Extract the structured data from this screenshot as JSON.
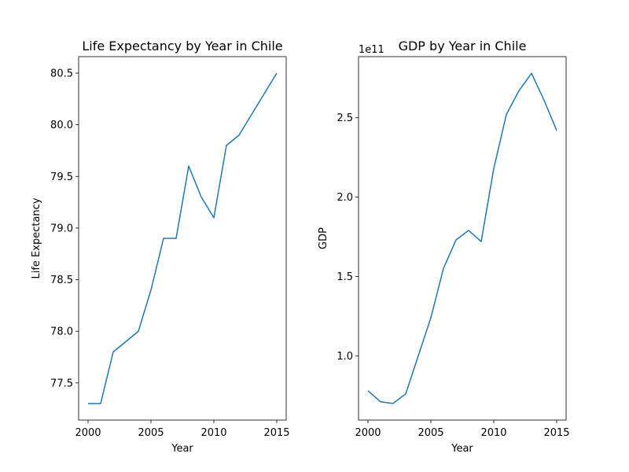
{
  "chart_data": [
    {
      "type": "line",
      "title": "Life Expectancy by Year in Chile",
      "xlabel": "Year",
      "ylabel": "Life Expectancy",
      "xlim": [
        1999.25,
        2015.75
      ],
      "ylim": [
        77.14,
        80.66
      ],
      "xticks": [
        2000,
        2005,
        2010,
        2015
      ],
      "yticks": [
        77.5,
        78.0,
        78.5,
        79.0,
        79.5,
        80.0,
        80.5
      ],
      "xtick_labels": [
        "2000",
        "2005",
        "2010",
        "2015"
      ],
      "ytick_labels": [
        "77.5",
        "78.0",
        "78.5",
        "79.0",
        "79.5",
        "80.0",
        "80.5"
      ],
      "offset_label": "",
      "grid": false,
      "color": "#1f77b4",
      "x": [
        2000,
        2001,
        2002,
        2003,
        2004,
        2005,
        2006,
        2007,
        2008,
        2009,
        2010,
        2011,
        2012,
        2013,
        2014,
        2015
      ],
      "y": [
        77.3,
        77.3,
        77.8,
        77.9,
        78.0,
        78.4,
        78.9,
        78.9,
        79.6,
        79.3,
        79.1,
        79.8,
        79.9,
        80.1,
        80.3,
        80.5
      ]
    },
    {
      "type": "line",
      "title": "GDP by Year in Chile",
      "xlabel": "Year",
      "ylabel": "GDP",
      "xlim": [
        1999.25,
        2015.75
      ],
      "ylim": [
        0.595,
        2.885
      ],
      "xticks": [
        2000,
        2005,
        2010,
        2015
      ],
      "yticks": [
        1.0,
        1.5,
        2.0,
        2.5
      ],
      "xtick_labels": [
        "2000",
        "2005",
        "2010",
        "2015"
      ],
      "ytick_labels": [
        "1.0",
        "1.5",
        "2.0",
        "2.5"
      ],
      "offset_label": "1e11",
      "grid": false,
      "color": "#1f77b4",
      "x": [
        2000,
        2001,
        2002,
        2003,
        2004,
        2005,
        2006,
        2007,
        2008,
        2009,
        2010,
        2011,
        2012,
        2013,
        2014,
        2015
      ],
      "y": [
        0.78,
        0.71,
        0.7,
        0.76,
        1.0,
        1.24,
        1.55,
        1.73,
        1.79,
        1.72,
        2.18,
        2.52,
        2.67,
        2.78,
        2.61,
        2.42
      ]
    }
  ]
}
